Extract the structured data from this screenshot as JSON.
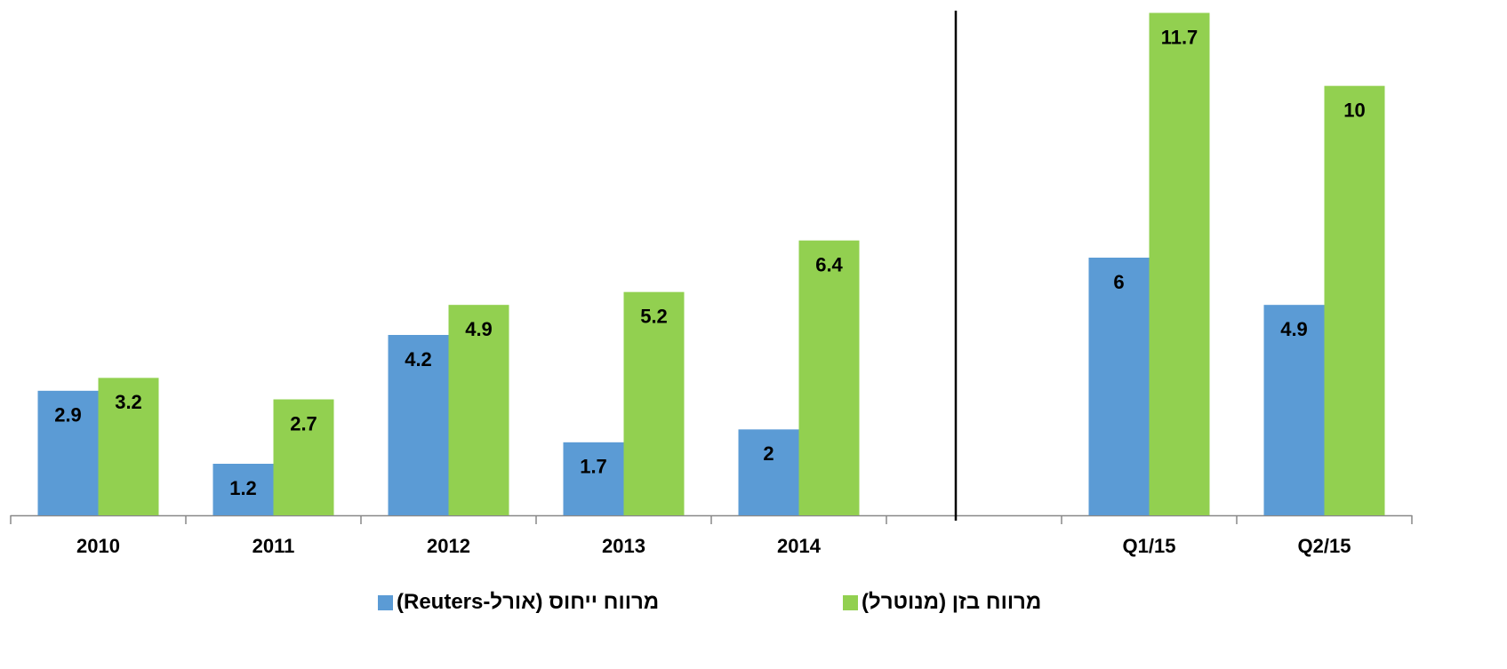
{
  "chart_data": {
    "type": "bar",
    "categories": [
      "2010",
      "2011",
      "2012",
      "2013",
      "2014",
      null,
      "Q1/15",
      "Q2/15"
    ],
    "series": [
      {
        "name": "מרווח ייחוס (אורל-Reuters)",
        "color": "#5b9bd5",
        "values": [
          2.9,
          1.2,
          4.2,
          1.7,
          2.0,
          null,
          6.0,
          4.9
        ]
      },
      {
        "name": "מרווח בזן (מנוטרל)",
        "color": "#92d050",
        "values": [
          3.2,
          2.7,
          4.9,
          5.2,
          6.4,
          null,
          11.7,
          10.0
        ]
      }
    ],
    "ylim": [
      0,
      12
    ],
    "grid": false,
    "legend": "bottom"
  }
}
